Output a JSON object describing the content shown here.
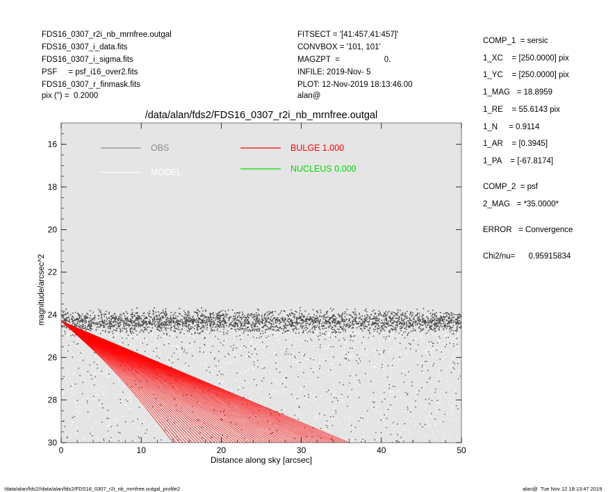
{
  "header": {
    "left": [
      "FDS16_0307_r2i_nb_mrnfree.outgal",
      "FDS16_0307_i_data.fits",
      "FDS16_0307_i_sigma.fits",
      "PSF     = psf_i16_over2.fits",
      "FDS16_0307_r_finmask.fits",
      "pix (\") =  0.2000"
    ],
    "middle": [
      "FITSECT = '[41:457,41:457]'",
      "CONVBOX = '101, 101'",
      "MAGZPT  =                    0.",
      "INFILE: 2019-Nov- 5",
      "PLOT: 12-Nov-2019 18:13:46.00",
      "alan@"
    ]
  },
  "params": [
    "COMP_1  = sersic",
    "1_XC    = [250.0000] pix",
    "1_YC    = [250.0000] pix",
    "1_MAG   = 18.8959",
    "1_RE    = 55.6143 pix",
    "1_N     = 0.9114",
    "1_AR    = [0.3945]",
    "1_PA    = [-67.8174]",
    "COMP_2  = psf",
    "2_MAG   = *35.0000*",
    "ERROR   = Convergence",
    "Chi2/nu=      0.95915834"
  ],
  "footer": {
    "left": "/data/alan/fds2//data/alan/fds2/FDS16_0307_r2i_nb_mrnfree.outgal_profile2",
    "right": "alan@  Tue Nov 12 18:13:47 2019"
  },
  "colors": {
    "background": "#e5e5e5",
    "obs": "#444444",
    "obs_legend": "#8c8c8c",
    "model": "#ffffff",
    "bulge": "#ff0000",
    "nucleus": "#00dd00"
  },
  "chart_data": {
    "type": "scatter",
    "title": "/data/alan/fds2/FDS16_0307_r2i_nb_mrnfree.outgal",
    "xlabel": "Distance along sky [arcsec]",
    "ylabel": "magnitude/arcsec^2",
    "xlim": [
      0,
      50
    ],
    "ylim": [
      30,
      15
    ],
    "y_inverted": true,
    "xticks": [
      0,
      10,
      20,
      30,
      40,
      50
    ],
    "yticks": [
      16,
      18,
      20,
      22,
      24,
      26,
      28,
      30
    ],
    "legend": [
      {
        "label": "OBS",
        "color": "#8c8c8c"
      },
      {
        "label": "MODEL",
        "color": "#ffffff"
      },
      {
        "label": "BULGE  1.000",
        "color": "#ff0000"
      },
      {
        "label": "NUCLEUS  0.000",
        "color": "#00dd00"
      }
    ],
    "series": [
      {
        "name": "OBS",
        "description": "dense dark point band at ~24.3 +/- 0.4 mag/arcsec^2 across the full radius range, with sparse scattered points down to 30",
        "band_center": 24.3,
        "band_halfwidth": 0.45
      },
      {
        "name": "BULGE  1.000",
        "description": "fan of red model curves starting at ~24.3 at r=0; upper edge reaches 30 at r~36 arcsec, lower edge reaches 30 at r~14 arcsec",
        "start": [
          0,
          24.3
        ],
        "upper_edge_end": [
          36,
          30
        ],
        "lower_edge_end": [
          14,
          30
        ]
      }
    ]
  }
}
